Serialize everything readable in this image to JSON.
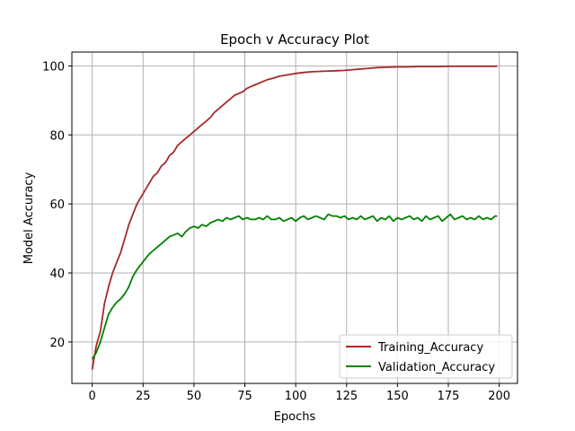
{
  "chart_data": {
    "type": "line",
    "title": "Epoch v Accuracy Plot",
    "xlabel": "Epochs",
    "ylabel": "Model Accuracy",
    "xlim": [
      -10,
      209
    ],
    "ylim": [
      8,
      104
    ],
    "xticks": [
      0,
      25,
      50,
      75,
      100,
      125,
      150,
      175,
      200
    ],
    "yticks": [
      20,
      40,
      60,
      80,
      100
    ],
    "xtick_labels": [
      "0",
      "25",
      "50",
      "75",
      "100",
      "125",
      "150",
      "175",
      "200"
    ],
    "ytick_labels": [
      "20",
      "40",
      "60",
      "80",
      "100"
    ],
    "grid": true,
    "legend_position": "lower-right",
    "series": [
      {
        "name": "Training_Accuracy",
        "color": "#a52a2a",
        "x": [
          0,
          2,
          4,
          6,
          8,
          10,
          12,
          14,
          16,
          18,
          20,
          22,
          24,
          26,
          28,
          30,
          32,
          34,
          36,
          38,
          40,
          42,
          44,
          46,
          48,
          50,
          52,
          54,
          56,
          58,
          60,
          62,
          64,
          66,
          68,
          70,
          72,
          74,
          76,
          78,
          80,
          82,
          84,
          86,
          88,
          90,
          92,
          94,
          96,
          98,
          100,
          104,
          108,
          112,
          116,
          120,
          124,
          128,
          132,
          136,
          140,
          145,
          150,
          155,
          160,
          165,
          170,
          175,
          180,
          185,
          190,
          195,
          199
        ],
        "y": [
          12,
          19,
          23,
          31,
          36,
          40,
          43,
          46,
          50,
          54,
          57,
          60,
          62,
          64,
          66,
          68,
          69,
          71,
          72,
          74,
          75,
          77,
          78,
          79,
          80,
          81,
          82,
          83,
          84,
          85,
          86.5,
          87.5,
          88.5,
          89.5,
          90.5,
          91.5,
          92,
          92.5,
          93.5,
          94,
          94.5,
          95,
          95.5,
          96,
          96.3,
          96.6,
          97,
          97.2,
          97.4,
          97.6,
          97.8,
          98.1,
          98.3,
          98.4,
          98.5,
          98.6,
          98.7,
          98.9,
          99.1,
          99.3,
          99.5,
          99.6,
          99.7,
          99.7,
          99.8,
          99.8,
          99.8,
          99.9,
          99.9,
          99.9,
          99.9,
          99.9,
          99.9
        ]
      },
      {
        "name": "Validation_Accuracy",
        "color": "#008000",
        "x": [
          0,
          2,
          4,
          6,
          8,
          10,
          12,
          14,
          16,
          18,
          20,
          22,
          24,
          26,
          28,
          30,
          32,
          34,
          36,
          38,
          40,
          42,
          44,
          46,
          48,
          50,
          52,
          54,
          56,
          58,
          60,
          62,
          64,
          66,
          68,
          70,
          72,
          74,
          76,
          78,
          80,
          82,
          84,
          86,
          88,
          90,
          92,
          94,
          96,
          98,
          100,
          102,
          104,
          106,
          108,
          110,
          112,
          114,
          116,
          118,
          120,
          122,
          124,
          126,
          128,
          130,
          132,
          134,
          136,
          138,
          140,
          142,
          144,
          146,
          148,
          150,
          152,
          154,
          156,
          158,
          160,
          162,
          164,
          166,
          168,
          170,
          172,
          174,
          176,
          178,
          180,
          182,
          184,
          186,
          188,
          190,
          192,
          194,
          196,
          198,
          199
        ],
        "y": [
          15,
          17,
          20,
          24,
          28,
          30,
          31.5,
          32.5,
          34,
          36,
          39,
          41,
          42.5,
          44,
          45.5,
          46.5,
          47.5,
          48.5,
          49.5,
          50.5,
          51,
          51.5,
          50.5,
          52,
          53,
          53.5,
          53,
          54,
          53.5,
          54.5,
          55,
          55.5,
          55,
          56,
          55.5,
          56,
          56.5,
          55.5,
          56,
          55.5,
          55.5,
          56,
          55.5,
          56.5,
          55.5,
          55.5,
          56,
          55,
          55.5,
          56,
          55,
          56,
          56.5,
          55.5,
          56,
          56.5,
          56,
          55.5,
          57,
          56.5,
          56.5,
          56,
          56.5,
          55.5,
          56,
          55.5,
          56.5,
          55.5,
          56,
          56.5,
          55,
          56,
          55.5,
          56.5,
          55,
          56,
          55.5,
          56,
          56.5,
          55.5,
          56,
          55,
          56.5,
          55.5,
          56,
          56.5,
          55,
          56,
          57,
          55.5,
          56,
          56.5,
          55.5,
          56,
          55.5,
          56.5,
          55.5,
          56,
          55.5,
          56.5,
          56.5
        ]
      }
    ]
  }
}
